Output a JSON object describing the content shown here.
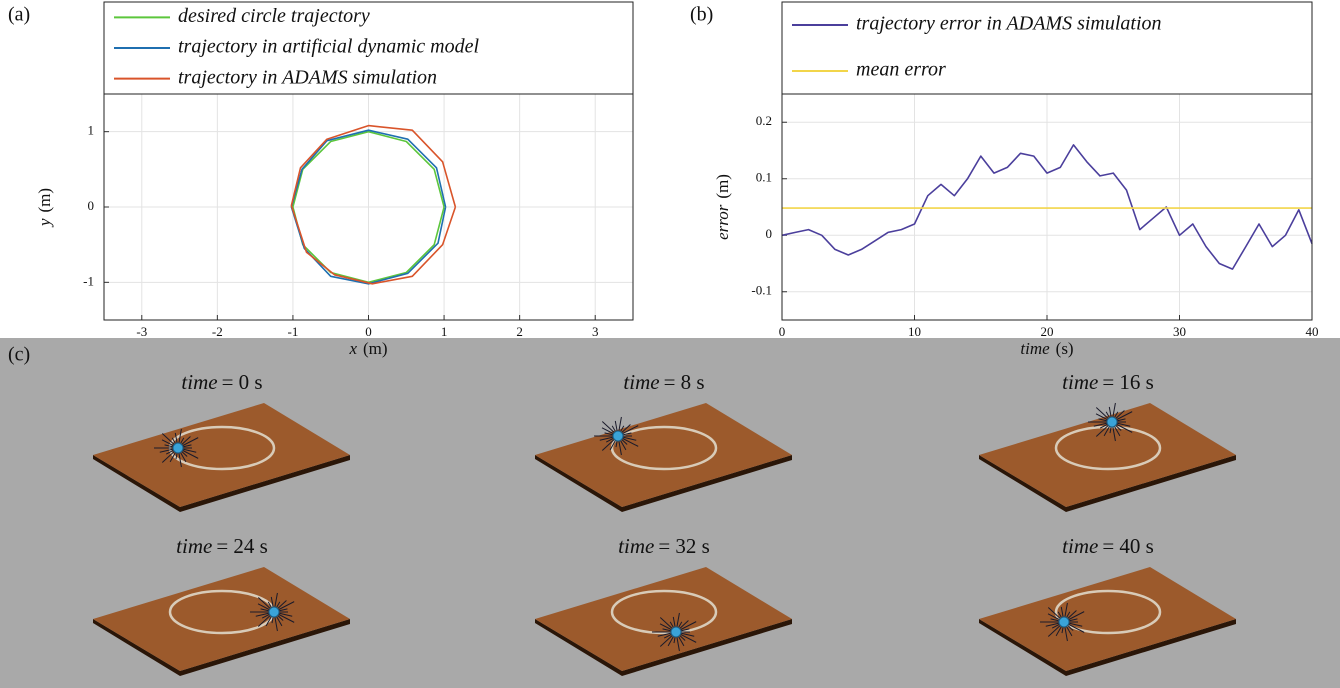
{
  "chart_data": [
    {
      "type": "line",
      "label": "(a)",
      "xlabel": "x",
      "xunit": "(m)",
      "ylabel": "y",
      "yunit": "(m)",
      "xlim": [
        -3.5,
        3.5
      ],
      "xticks": [
        -3,
        -2,
        -1,
        0,
        1,
        2,
        3
      ],
      "ylim": [
        -1.5,
        1.5
      ],
      "yticks": [
        -1,
        0,
        1
      ],
      "grid": true,
      "series": [
        {
          "name": "desired circle trajectory",
          "color": "#5cc63c",
          "x": [
            1,
            0.87,
            0.5,
            0,
            -0.5,
            -0.87,
            -1,
            -0.87,
            -0.5,
            0,
            0.5,
            0.87,
            1
          ],
          "values": [
            0,
            0.5,
            0.87,
            1,
            0.87,
            0.5,
            0,
            -0.5,
            -0.87,
            -1,
            -0.87,
            -0.5,
            0
          ]
        },
        {
          "name": "trajectory in artificial dynamic model",
          "color": "#1f6fb0",
          "x": [
            1.02,
            0.9,
            0.52,
            0,
            -0.55,
            -0.88,
            -1.02,
            -0.85,
            -0.5,
            0,
            0.52,
            0.92,
            1.02
          ],
          "values": [
            0,
            0.52,
            0.9,
            1.02,
            0.88,
            0.5,
            0,
            -0.55,
            -0.92,
            -1.02,
            -0.88,
            -0.48,
            0
          ]
        },
        {
          "name": "trajectory in ADAMS simulation",
          "color": "#d9542a",
          "x": [
            1.15,
            0.98,
            0.58,
            0,
            -0.55,
            -0.9,
            -1.02,
            -0.82,
            -0.45,
            0.05,
            0.58,
            0.98,
            1.15
          ],
          "values": [
            0,
            0.6,
            1.02,
            1.08,
            0.9,
            0.52,
            0.02,
            -0.6,
            -0.9,
            -1.02,
            -0.92,
            -0.5,
            0
          ]
        }
      ]
    },
    {
      "type": "line",
      "label": "(b)",
      "xlabel": "time",
      "xunit": "(s)",
      "ylabel": "error",
      "yunit": "(m)",
      "xlim": [
        0,
        40
      ],
      "xticks": [
        0,
        10,
        20,
        30,
        40
      ],
      "ylim": [
        -0.15,
        0.25
      ],
      "yticks": [
        -0.1,
        0,
        0.1,
        0.2
      ],
      "grid": true,
      "x": [
        0,
        1,
        2,
        3,
        4,
        5,
        6,
        7,
        8,
        9,
        10,
        11,
        12,
        13,
        14,
        15,
        16,
        17,
        18,
        19,
        20,
        21,
        22,
        23,
        24,
        25,
        26,
        27,
        28,
        29,
        30,
        31,
        32,
        33,
        34,
        35,
        36,
        37,
        38,
        39,
        40
      ],
      "series": [
        {
          "name": "trajectory error in ADAMS simulation",
          "color": "#4b3f9c",
          "values": [
            0,
            0.005,
            0.01,
            0,
            -0.025,
            -0.035,
            -0.025,
            -0.01,
            0.005,
            0.01,
            0.02,
            0.07,
            0.09,
            0.07,
            0.1,
            0.14,
            0.11,
            0.12,
            0.145,
            0.14,
            0.11,
            0.12,
            0.16,
            0.13,
            0.105,
            0.11,
            0.08,
            0.01,
            0.03,
            0.05,
            0,
            0.02,
            -0.02,
            -0.05,
            -0.06,
            -0.02,
            0.02,
            -0.02,
            0,
            0.045,
            -0.015
          ]
        },
        {
          "name": "mean error",
          "color": "#f2d54a",
          "x": [
            0,
            40
          ],
          "values": [
            0.048,
            0.048
          ]
        }
      ]
    }
  ],
  "panel_c": {
    "label": "(c)",
    "snapshots": [
      {
        "var": "time",
        "text": "= 0 s"
      },
      {
        "var": "time",
        "text": "= 8 s"
      },
      {
        "var": "time",
        "text": "= 16 s"
      },
      {
        "var": "time",
        "text": "= 24 s"
      },
      {
        "var": "time",
        "text": "= 32 s"
      },
      {
        "var": "time",
        "text": "= 40 s"
      }
    ]
  }
}
